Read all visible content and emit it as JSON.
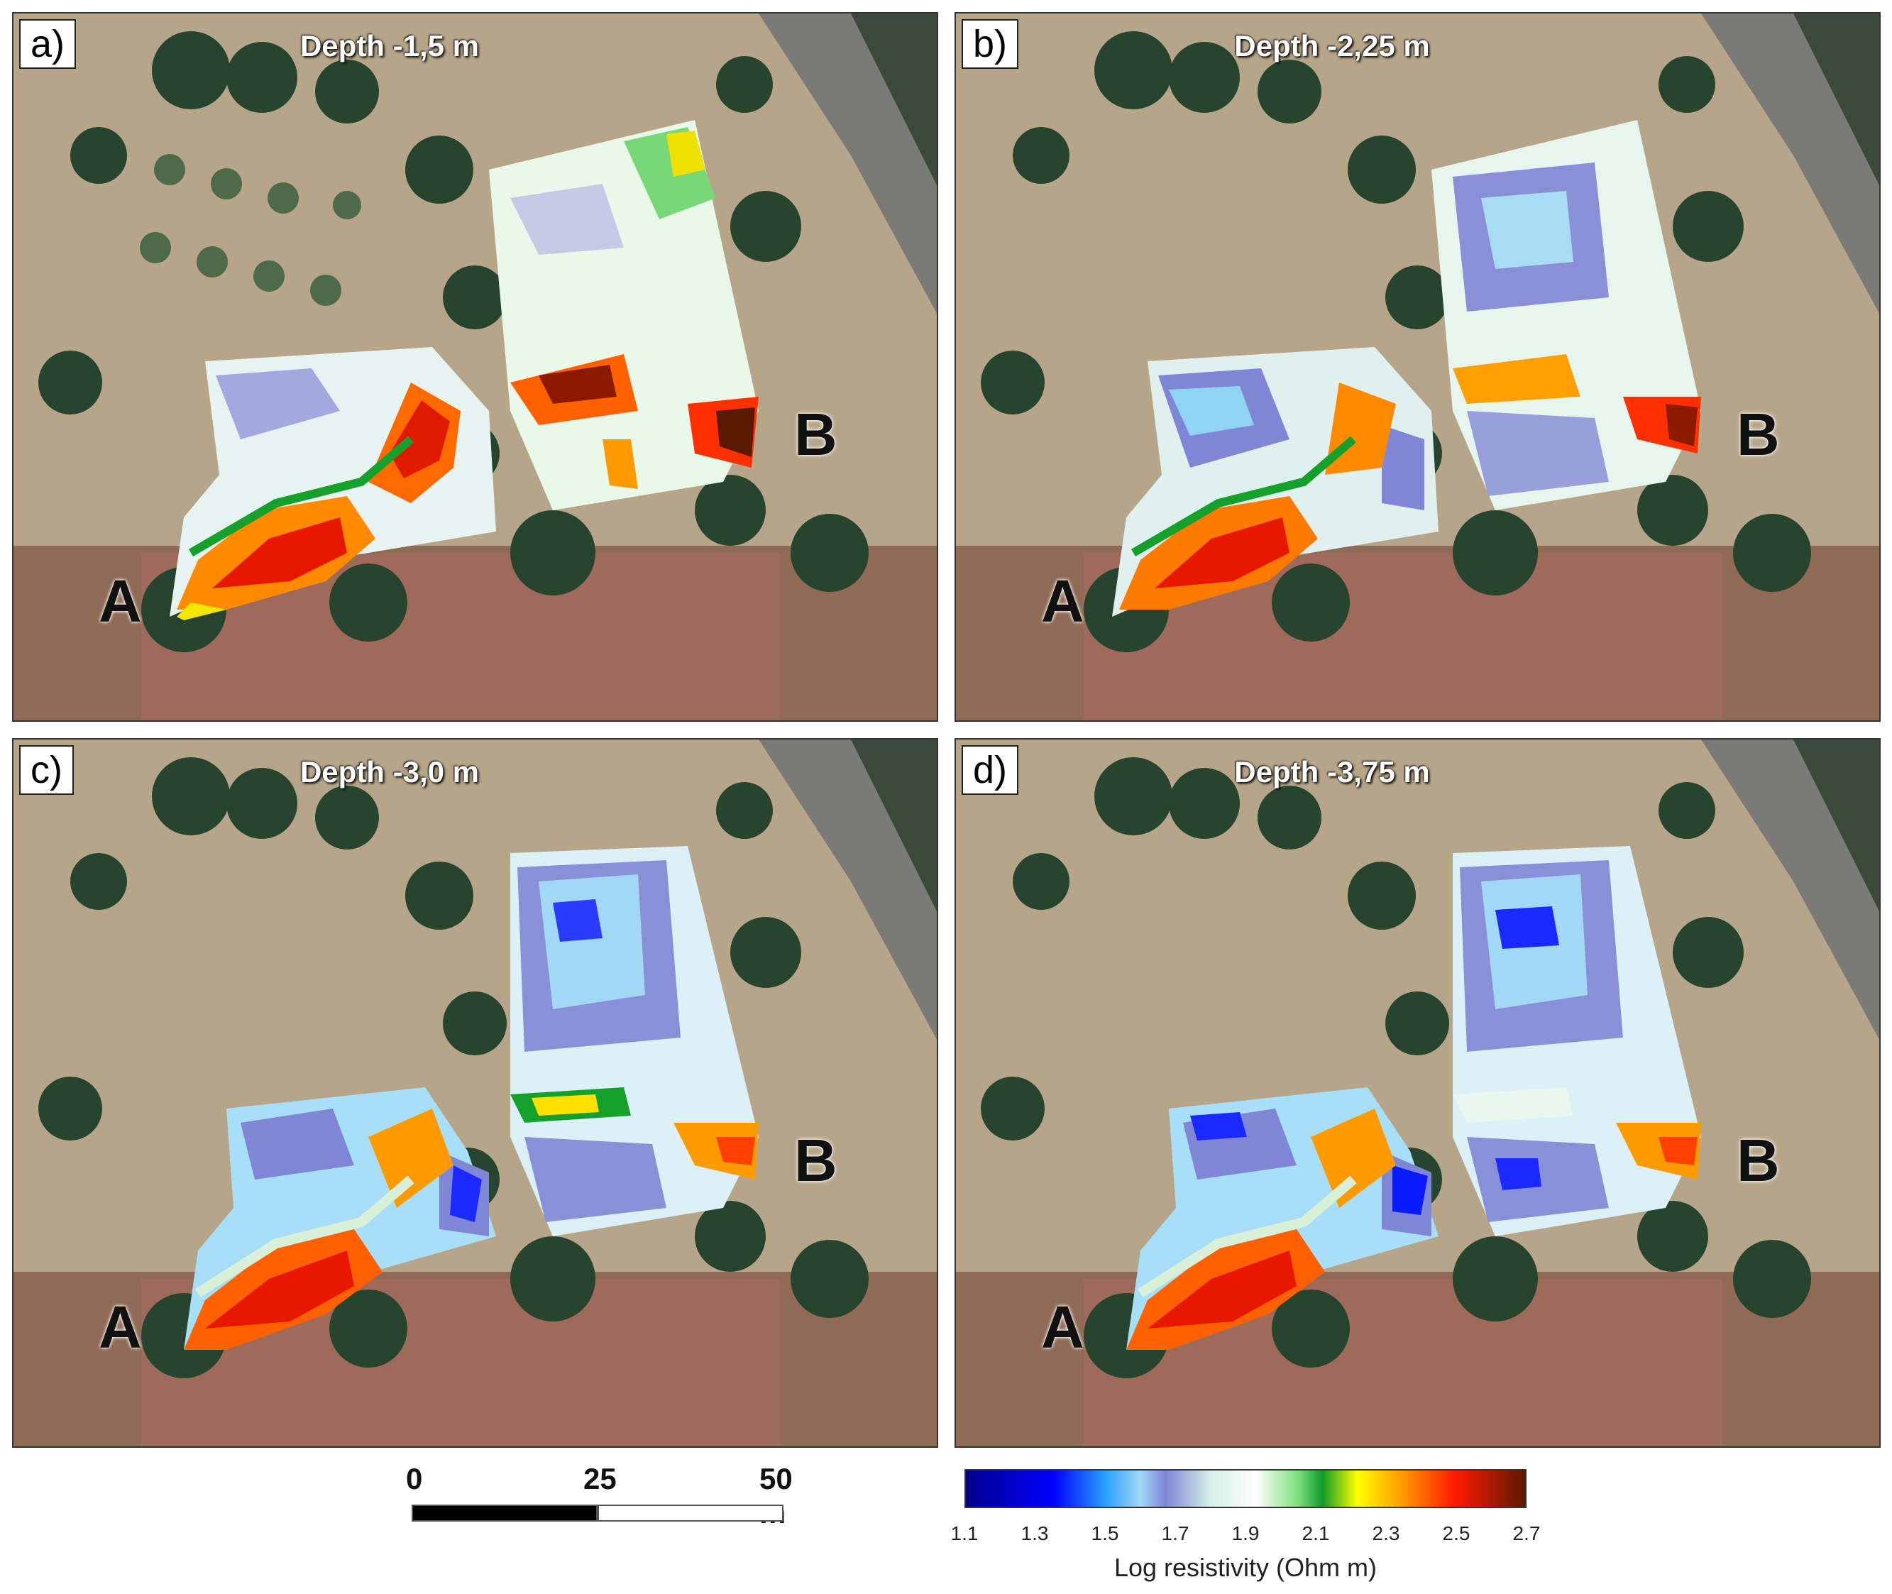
{
  "panels": [
    {
      "id": "a",
      "letter": "a)",
      "depth": "Depth -1,5 m",
      "point_a": "A",
      "point_b": "B"
    },
    {
      "id": "b",
      "letter": "b)",
      "depth": "Depth -2,25 m",
      "point_a": "A",
      "point_b": "B"
    },
    {
      "id": "c",
      "letter": "c)",
      "depth": "Depth -3,0 m",
      "point_a": "A",
      "point_b": "B"
    },
    {
      "id": "d",
      "letter": "d)",
      "depth": "Depth -3,75 m",
      "point_a": "A",
      "point_b": "B"
    }
  ],
  "scale_bar": {
    "labels": [
      "0",
      "25",
      "50 m"
    ]
  },
  "colorbar": {
    "title": "Log resistivity (Ohm m)",
    "ticks": [
      "1.1",
      "1.3",
      "1.5",
      "1.7",
      "1.9",
      "2.1",
      "2.3",
      "2.5",
      "2.7"
    ],
    "min": 1.1,
    "max": 2.7,
    "stops": [
      {
        "value": 1.1,
        "color": "#00008c"
      },
      {
        "value": 1.35,
        "color": "#0000ff"
      },
      {
        "value": 1.5,
        "color": "#2aa0ff"
      },
      {
        "value": 1.6,
        "color": "#9fd9f7"
      },
      {
        "value": 1.67,
        "color": "#7f86d6"
      },
      {
        "value": 1.8,
        "color": "#d4f0e8"
      },
      {
        "value": 1.93,
        "color": "#ffffff"
      },
      {
        "value": 2.05,
        "color": "#7ee07e"
      },
      {
        "value": 2.12,
        "color": "#109a2a"
      },
      {
        "value": 2.22,
        "color": "#ffff00"
      },
      {
        "value": 2.35,
        "color": "#ff9a00"
      },
      {
        "value": 2.5,
        "color": "#ff1a00"
      },
      {
        "value": 2.7,
        "color": "#5a1a00"
      }
    ]
  }
}
